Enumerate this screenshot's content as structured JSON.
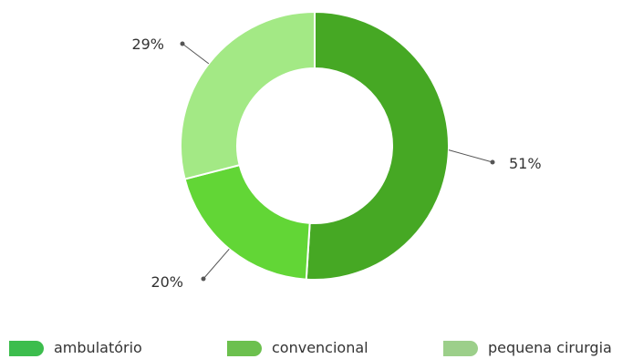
{
  "chart_data": {
    "type": "pie",
    "variant": "donut",
    "categories": [
      "ambulatório",
      "convencional",
      "pequena cirurgia"
    ],
    "values": [
      51,
      20,
      29
    ],
    "data_labels": [
      "51%",
      "20%",
      "29%"
    ],
    "slice_colors": [
      "#46a824",
      "#62d636",
      "#a3e985"
    ],
    "legend_colors": [
      "#3cbd4d",
      "#6cc04e",
      "#9ccf8a"
    ],
    "legend_position": "bottom",
    "start_angle_deg": 0,
    "direction": "clockwise"
  }
}
